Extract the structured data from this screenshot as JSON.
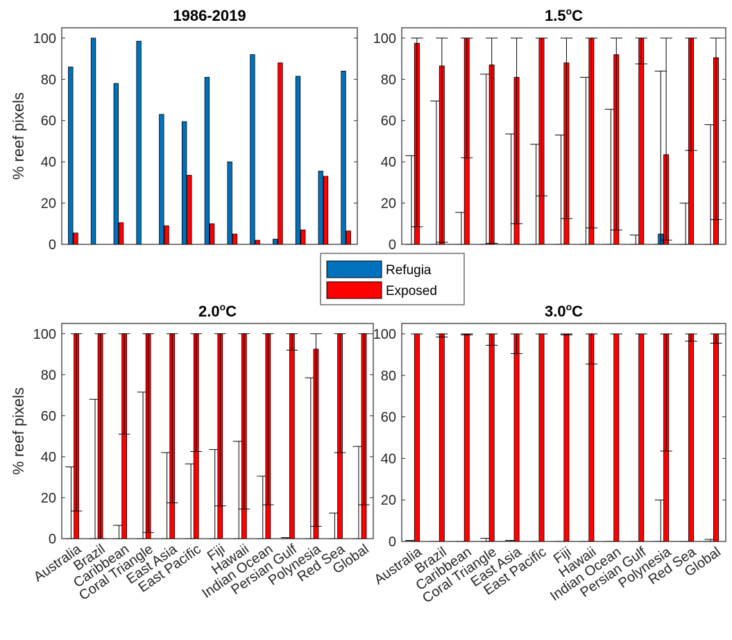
{
  "colors": {
    "refugia": "#0072BD",
    "exposed": "#FF0000",
    "error_bar": "#000000",
    "axis": "#262626"
  },
  "legend": {
    "location": "center between panels",
    "entries": [
      {
        "label": "Refugia",
        "color": "#0072BD"
      },
      {
        "label": "Exposed",
        "color": "#FF0000"
      }
    ]
  },
  "chart_data": [
    {
      "type": "bar",
      "title": "1986-2019",
      "ylabel": "% reef pixels",
      "ylim": [
        0,
        105
      ],
      "yticks": [
        0,
        20,
        40,
        60,
        80,
        100
      ],
      "grid": false,
      "show_category_labels": false,
      "categories": [
        "Australia",
        "Brazil",
        "Caribbean",
        "Coral Triangle",
        "East Asia",
        "East Pacific",
        "Fiji",
        "Hawaii",
        "Indian Ocean",
        "Persian Gulf",
        "Polynesia",
        "Red Sea",
        "Global"
      ],
      "series": [
        {
          "name": "Refugia",
          "values": [
            86,
            100,
            78,
            98.5,
            63,
            59.5,
            81,
            40,
            92,
            2.5,
            81.5,
            35.5,
            84
          ]
        },
        {
          "name": "Exposed",
          "values": [
            5.5,
            0,
            10.5,
            0,
            9,
            33.5,
            10,
            5,
            2,
            88,
            7,
            33,
            6.5
          ]
        }
      ]
    },
    {
      "type": "bar",
      "title": "1.5",
      "title_sup": "o",
      "title_suffix": "C",
      "ylabel": "",
      "ylim": [
        0,
        105
      ],
      "yticks": [
        0,
        20,
        40,
        60,
        80,
        100
      ],
      "grid": false,
      "show_category_labels": false,
      "categories": [
        "Australia",
        "Brazil",
        "Caribbean",
        "Coral Triangle",
        "East Asia",
        "East Pacific",
        "Fiji",
        "Hawaii",
        "Indian Ocean",
        "Persian Gulf",
        "Polynesia",
        "Red Sea",
        "Global"
      ],
      "series": [
        {
          "name": "Refugia",
          "values": [
            0,
            0,
            0,
            0,
            0,
            0,
            0,
            0,
            0,
            0,
            5,
            0,
            0
          ],
          "err_low": [
            0,
            0,
            0,
            0,
            0,
            0,
            0,
            0,
            0,
            0,
            0,
            0,
            0
          ],
          "err_high": [
            43,
            69.5,
            15.5,
            82.5,
            53.5,
            48.5,
            53,
            81,
            65.5,
            4.5,
            84,
            20,
            58
          ]
        },
        {
          "name": "Exposed",
          "values": [
            97.5,
            86.5,
            100,
            87,
            81,
            100,
            88,
            100,
            92,
            100,
            43.5,
            100,
            90.5
          ],
          "err_low": [
            8.5,
            1,
            42,
            0.5,
            10,
            23.5,
            12.5,
            8,
            7,
            87.5,
            2,
            45.5,
            12
          ],
          "err_high": [
            100,
            100,
            100,
            100,
            100,
            100,
            100,
            100,
            100,
            100,
            100,
            100,
            100
          ]
        }
      ]
    },
    {
      "type": "bar",
      "title": "2.0",
      "title_sup": "o",
      "title_suffix": "C",
      "ylabel": "% reef pixels",
      "ylim": [
        0,
        105
      ],
      "yticks": [
        0,
        20,
        40,
        60,
        80,
        100
      ],
      "grid": false,
      "show_category_labels": true,
      "categories": [
        "Australia",
        "Brazil",
        "Caribbean",
        "Coral Triangle",
        "East Asia",
        "East Pacific",
        "Fiji",
        "Hawaii",
        "Indian Ocean",
        "Persian Gulf",
        "Polynesia",
        "Red Sea",
        "Global"
      ],
      "series": [
        {
          "name": "Refugia",
          "values": [
            0,
            0,
            0,
            0,
            0,
            0,
            0,
            0,
            0,
            0,
            0,
            0,
            0
          ],
          "err_low": [
            0,
            0,
            0,
            0,
            0,
            0,
            0,
            0,
            0,
            0,
            0,
            0,
            0
          ],
          "err_high": [
            35,
            68,
            6.5,
            71.5,
            42,
            36.5,
            43.5,
            47.5,
            30.5,
            0.5,
            78.5,
            12.5,
            45
          ]
        },
        {
          "name": "Exposed",
          "values": [
            100,
            100,
            100,
            100,
            100,
            100,
            100,
            100,
            100,
            100,
            92.5,
            100,
            100
          ],
          "err_low": [
            13.5,
            0,
            51,
            3,
            17.5,
            42.5,
            16,
            14.5,
            16.5,
            92,
            6,
            42,
            16.5
          ],
          "err_high": [
            100,
            100,
            100,
            100,
            100,
            100,
            100,
            100,
            100,
            100,
            100,
            100,
            100
          ]
        }
      ]
    },
    {
      "type": "bar",
      "title": "3.0",
      "title_sup": "o",
      "title_suffix": "C",
      "ylabel": "",
      "ylim": [
        0,
        105
      ],
      "yticks": [
        0,
        20,
        40,
        60,
        80,
        100
      ],
      "grid": false,
      "show_category_labels": true,
      "categories": [
        "Australia",
        "Brazil",
        "Caribbean",
        "Coral Triangle",
        "East Asia",
        "East Pacific",
        "Fiji",
        "Hawaii",
        "Indian Ocean",
        "Persian Gulf",
        "Polynesia",
        "Red Sea",
        "Global"
      ],
      "series": [
        {
          "name": "Refugia",
          "values": [
            0,
            0,
            0,
            0,
            0,
            0,
            0,
            0,
            0,
            0,
            0,
            0,
            0
          ],
          "err_low": [
            0,
            0,
            0,
            0,
            0,
            0,
            0,
            0,
            0,
            0,
            0,
            0,
            0
          ],
          "err_high": [
            0.5,
            0,
            0,
            1.5,
            0.5,
            0,
            0,
            0,
            0,
            0,
            20,
            0,
            1
          ]
        },
        {
          "name": "Exposed",
          "values": [
            100,
            100,
            100,
            100,
            100,
            100,
            100,
            100,
            100,
            100,
            100,
            100,
            100
          ],
          "err_low": [
            100,
            98.5,
            99.5,
            94.5,
            90.5,
            100,
            99.5,
            85.5,
            100,
            100,
            43.5,
            96.5,
            95.5
          ],
          "err_high": [
            100,
            100,
            100,
            100,
            100,
            100,
            100,
            100,
            100,
            100,
            100,
            100,
            100
          ]
        }
      ]
    }
  ]
}
